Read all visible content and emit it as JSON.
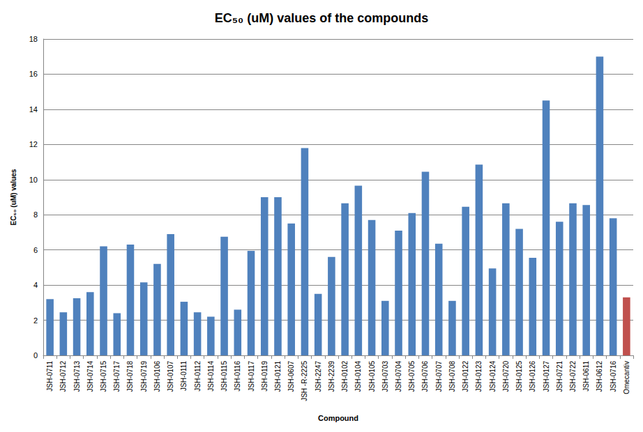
{
  "chart_data": {
    "type": "bar",
    "title": "EC₅₀ (uM) values of the compounds",
    "x_label": "Compound",
    "y_label": "EC₅₀ (uM) values",
    "categories": [
      "JSH-0711",
      "JSH-0712",
      "JSH-0713",
      "JSH-0714",
      "JSH-0715",
      "JSH-0717",
      "JSH-0718",
      "JSH-0719",
      "JSH-0106",
      "JSH-0107",
      "JSH-0111",
      "JSH-0112",
      "JSH-0114",
      "JSH-0115",
      "JSH-0116",
      "JSH-0117",
      "JSH-0119",
      "JSH-0121",
      "JSH-0607",
      "JSH -R-2225",
      "JSH-2247",
      "JSH-2239",
      "JSH-0102",
      "JSH-0104",
      "JSH-0105",
      "JSH-0703",
      "JSH-0704",
      "JSH-0705",
      "JSH-0706",
      "JSH-0707",
      "JSH-0708",
      "JSH-0122",
      "JSH-0123",
      "JSH-0124",
      "JSH-0720",
      "JSH-0125",
      "JSH-0126",
      "JSH-0127",
      "JSH-0721",
      "JSH-0722",
      "JSH-0611",
      "JSH-0612",
      "JSH-0716",
      "Omecantiv"
    ],
    "values": [
      3.2,
      2.45,
      3.25,
      3.6,
      6.2,
      2.4,
      6.3,
      4.15,
      5.2,
      6.9,
      3.05,
      2.45,
      2.2,
      6.75,
      2.6,
      5.95,
      9.0,
      9.0,
      7.5,
      11.8,
      3.5,
      5.6,
      8.65,
      9.65,
      7.7,
      3.1,
      7.1,
      8.1,
      10.45,
      6.35,
      3.1,
      8.45,
      10.85,
      4.95,
      8.65,
      7.2,
      5.55,
      14.5,
      7.6,
      8.65,
      8.55,
      17.0,
      7.8,
      3.3
    ],
    "colors": [
      "#4f81bd",
      "#4f81bd",
      "#4f81bd",
      "#4f81bd",
      "#4f81bd",
      "#4f81bd",
      "#4f81bd",
      "#4f81bd",
      "#4f81bd",
      "#4f81bd",
      "#4f81bd",
      "#4f81bd",
      "#4f81bd",
      "#4f81bd",
      "#4f81bd",
      "#4f81bd",
      "#4f81bd",
      "#4f81bd",
      "#4f81bd",
      "#4f81bd",
      "#4f81bd",
      "#4f81bd",
      "#4f81bd",
      "#4f81bd",
      "#4f81bd",
      "#4f81bd",
      "#4f81bd",
      "#4f81bd",
      "#4f81bd",
      "#4f81bd",
      "#4f81bd",
      "#4f81bd",
      "#4f81bd",
      "#4f81bd",
      "#4f81bd",
      "#4f81bd",
      "#4f81bd",
      "#4f81bd",
      "#4f81bd",
      "#4f81bd",
      "#4f81bd",
      "#4f81bd",
      "#4f81bd",
      "#c0504d"
    ],
    "ylim": [
      0,
      18
    ],
    "yticks": [
      0,
      2,
      4,
      6,
      8,
      10,
      12,
      14,
      16,
      18
    ],
    "grid": true
  }
}
